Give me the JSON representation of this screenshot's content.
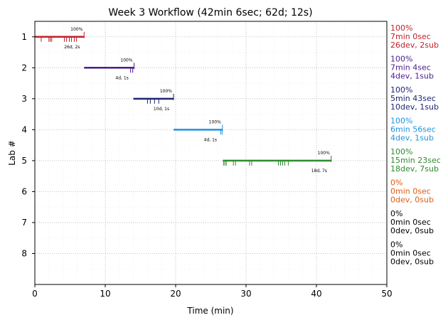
{
  "chart_data": {
    "type": "gantt",
    "title": "Week 3 Workflow (42min 6sec; 62d; 12s)",
    "xlabel": "Time (min)",
    "ylabel": "Lab #",
    "xlim": [
      0,
      50
    ],
    "ylim": [
      0.5,
      9
    ],
    "xticks": [
      0,
      10,
      20,
      30,
      40,
      50
    ],
    "yticks": [
      1,
      2,
      3,
      4,
      5,
      6,
      7,
      8
    ],
    "grid": true,
    "labs": [
      {
        "lab": 1,
        "start": 0,
        "end": 7.0,
        "color": "#c0222a",
        "pct": "100%",
        "dev": "26d, 2s",
        "side": [
          "100%",
          "7min 0sec",
          "26dev, 2sub"
        ],
        "events": [
          0.9,
          2.0,
          2.2,
          2.4,
          4.2,
          4.5,
          4.9,
          5.2,
          5.6,
          5.9
        ]
      },
      {
        "lab": 2,
        "start": 7.0,
        "end": 14.1,
        "color": "#4b1c8c",
        "pct": "100%",
        "dev": "4d, 1s",
        "side": [
          "100%",
          "7min 4sec",
          "4dev, 1sub"
        ],
        "events": [
          13.6,
          13.9
        ]
      },
      {
        "lab": 3,
        "start": 14.0,
        "end": 19.7,
        "color": "#1f2470",
        "pct": "100%",
        "dev": "10d, 1s",
        "side": [
          "100%",
          "5min 43sec",
          "10dev, 1sub"
        ],
        "events": [
          16.0,
          16.4,
          17.0,
          17.6
        ]
      },
      {
        "lab": 4,
        "start": 19.7,
        "end": 26.65,
        "color": "#1f94e0",
        "pct": "100%",
        "dev": "4d, 1s",
        "side": [
          "100%",
          "6min 56sec",
          "4dev, 1sub"
        ],
        "events": [
          26.4,
          26.6
        ]
      },
      {
        "lab": 5,
        "start": 26.7,
        "end": 42.1,
        "color": "#2e8b2e",
        "pct": "100%",
        "dev": "18d, 7s",
        "side": [
          "100%",
          "15min 23sec",
          "18dev, 7sub"
        ],
        "events": [
          26.8,
          27.0,
          27.2,
          28.2,
          28.5,
          30.5,
          30.8,
          34.6,
          34.9,
          35.2,
          35.5,
          36.0
        ]
      },
      {
        "lab": 6,
        "color": "#e05a10",
        "side": [
          "0%",
          "0min 0sec",
          "0dev, 0sub"
        ]
      },
      {
        "lab": 7,
        "color": "#000000",
        "side": [
          "0%",
          "0min 0sec",
          "0dev, 0sub"
        ]
      },
      {
        "lab": 8,
        "color": "#000000",
        "side": [
          "0%",
          "0min 0sec",
          "0dev, 0sub"
        ]
      }
    ]
  }
}
